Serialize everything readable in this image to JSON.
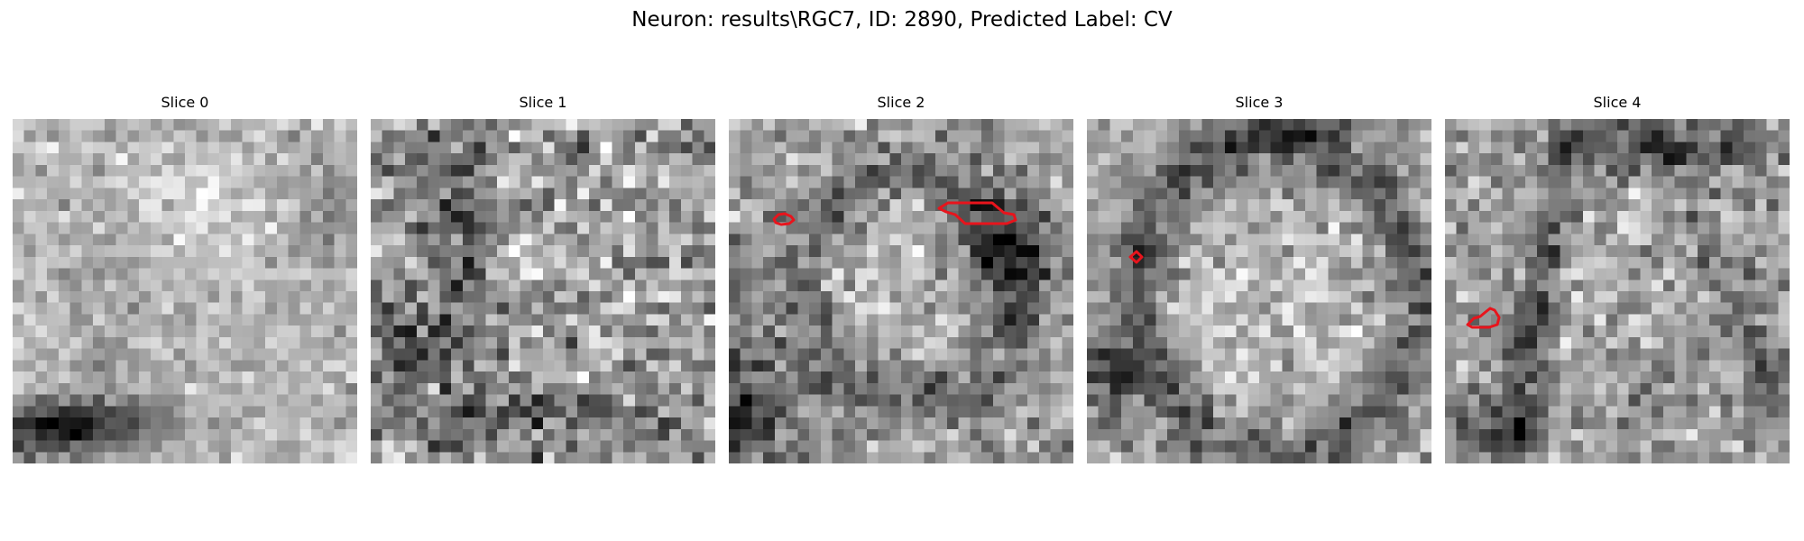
{
  "figure": {
    "title": "Neuron: results\\RGC7, ID: 2890, Predicted Label: CV",
    "colormap": "gray",
    "contour_color": "#e8141c",
    "grid_size": 30
  },
  "slices": [
    {
      "title": "Slice 0"
    },
    {
      "title": "Slice 1"
    },
    {
      "title": "Slice 2"
    },
    {
      "title": "Slice 3"
    },
    {
      "title": "Slice 4"
    }
  ]
}
